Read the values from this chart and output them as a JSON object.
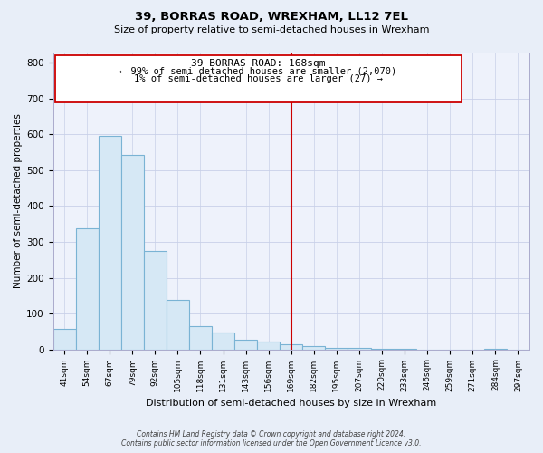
{
  "title": "39, BORRAS ROAD, WREXHAM, LL12 7EL",
  "subtitle": "Size of property relative to semi-detached houses in Wrexham",
  "xlabel": "Distribution of semi-detached houses by size in Wrexham",
  "ylabel": "Number of semi-detached properties",
  "bin_labels": [
    "41sqm",
    "54sqm",
    "67sqm",
    "79sqm",
    "92sqm",
    "105sqm",
    "118sqm",
    "131sqm",
    "143sqm",
    "156sqm",
    "169sqm",
    "182sqm",
    "195sqm",
    "207sqm",
    "220sqm",
    "233sqm",
    "246sqm",
    "259sqm",
    "271sqm",
    "284sqm",
    "297sqm"
  ],
  "bar_heights": [
    57,
    337,
    595,
    543,
    275,
    137,
    65,
    47,
    28,
    22,
    15,
    8,
    5,
    3,
    2,
    1,
    0,
    0,
    0,
    1,
    0
  ],
  "bar_color": "#d6e8f5",
  "bar_edge_color": "#7ab3d4",
  "vline_x_index": 10.0,
  "vline_color": "#cc0000",
  "annotation_line1": "39 BORRAS ROAD: 168sqm",
  "annotation_line2": "← 99% of semi-detached houses are smaller (2,070)",
  "annotation_line3": "1% of semi-detached houses are larger (27) →",
  "annotation_box_color": "#ffffff",
  "annotation_box_edge": "#cc0000",
  "ylim": [
    0,
    830
  ],
  "yticks": [
    0,
    100,
    200,
    300,
    400,
    500,
    600,
    700,
    800
  ],
  "footer_text": "Contains HM Land Registry data © Crown copyright and database right 2024.\nContains public sector information licensed under the Open Government Licence v3.0.",
  "bg_color": "#e8eef8",
  "plot_bg_color": "#eef2fb",
  "grid_color": "#c8d0e8"
}
